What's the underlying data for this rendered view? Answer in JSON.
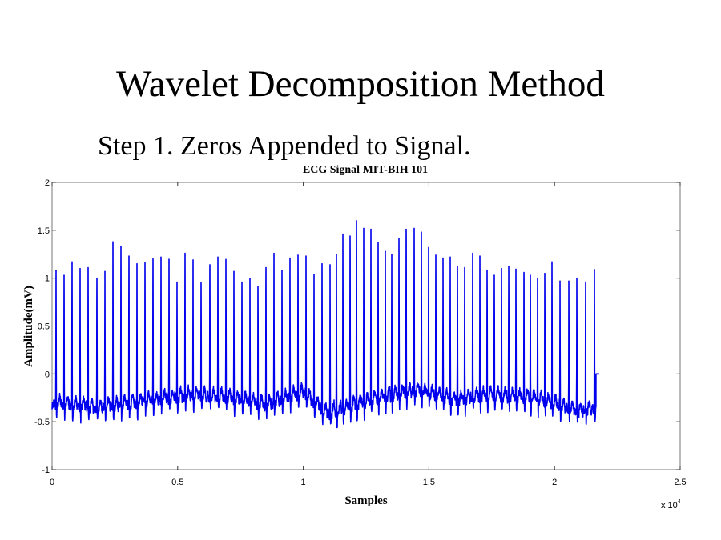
{
  "slide": {
    "title": "Wavelet Decomposition Method",
    "subtitle": "Step 1. Zeros Appended to Signal."
  },
  "chart_data": {
    "type": "line",
    "title": "ECG Signal MIT-BIH 101",
    "xlabel": "Samples",
    "ylabel": "Amplitude(mV)",
    "x_multiplier_label": "x 10",
    "x_multiplier_exp": "4",
    "xlim": [
      0,
      25000
    ],
    "ylim": [
      -1,
      2
    ],
    "xticks": [
      0,
      5000,
      10000,
      15000,
      20000,
      25000
    ],
    "xtick_labels": [
      "0",
      "0.5",
      "1",
      "1.5",
      "2",
      "2.5"
    ],
    "yticks": [
      -1,
      -0.5,
      0,
      0.5,
      1,
      1.5,
      2
    ],
    "ytick_labels": [
      "-1",
      "-0.5",
      "0",
      "0.5",
      "1",
      "1.5",
      "2"
    ],
    "grid": false,
    "series_color": "#0000ee",
    "signal_end_sample": 21650,
    "zero_padding_until_sample": 21780,
    "r_peaks": [
      [
        159,
        1.08
      ],
      [
        478,
        1.03
      ],
      [
        797,
        1.17
      ],
      [
        1116,
        1.1
      ],
      [
        1435,
        1.11
      ],
      [
        1786,
        1.0
      ],
      [
        2105,
        1.07
      ],
      [
        2424,
        1.38
      ],
      [
        2742,
        1.33
      ],
      [
        3061,
        1.23
      ],
      [
        3380,
        1.15
      ],
      [
        3699,
        1.16
      ],
      [
        4018,
        1.2
      ],
      [
        4337,
        1.22
      ],
      [
        4656,
        1.16
      ],
      [
        4975,
        0.96
      ],
      [
        5293,
        1.26
      ],
      [
        5612,
        1.19
      ],
      [
        5931,
        0.95
      ],
      [
        6282,
        1.14
      ],
      [
        6601,
        1.22
      ],
      [
        6920,
        1.19
      ],
      [
        7239,
        1.07
      ],
      [
        7558,
        0.96
      ],
      [
        7877,
        1.0
      ],
      [
        8196,
        0.91
      ],
      [
        8514,
        1.11
      ],
      [
        8833,
        1.26
      ],
      [
        9152,
        1.08
      ],
      [
        9471,
        1.21
      ],
      [
        9790,
        1.24
      ],
      [
        10109,
        1.23
      ],
      [
        10428,
        1.04
      ],
      [
        10747,
        1.15
      ],
      [
        11066,
        1.14
      ],
      [
        11321,
        1.25
      ],
      [
        11576,
        1.46
      ],
      [
        11863,
        1.44
      ],
      [
        12118,
        1.6
      ],
      [
        12405,
        1.52
      ],
      [
        12692,
        1.51
      ],
      [
        12979,
        1.37
      ],
      [
        13266,
        1.28
      ],
      [
        13521,
        1.25
      ],
      [
        13808,
        1.41
      ],
      [
        14095,
        1.51
      ],
      [
        14414,
        1.52
      ],
      [
        14701,
        1.48
      ],
      [
        14988,
        1.32
      ],
      [
        15275,
        1.24
      ],
      [
        15562,
        1.21
      ],
      [
        15849,
        1.22
      ],
      [
        16136,
        1.12
      ],
      [
        16423,
        1.11
      ],
      [
        16742,
        1.26
      ],
      [
        17029,
        1.23
      ],
      [
        17316,
        1.08
      ],
      [
        17603,
        1.03
      ],
      [
        17890,
        1.1
      ],
      [
        18177,
        1.12
      ],
      [
        18464,
        1.06
      ],
      [
        18783,
        1.06
      ],
      [
        19038,
        1.03
      ],
      [
        19325,
        1.0
      ],
      [
        19612,
        1.05
      ],
      [
        19899,
        1.17
      ],
      [
        20218,
        0.97
      ],
      [
        20569,
        0.97
      ],
      [
        20888,
        1.0
      ],
      [
        21237,
        0.96
      ],
      [
        21589,
        1.09
      ]
    ],
    "baseline": [
      [
        0,
        -0.33
      ],
      [
        2000,
        -0.38
      ],
      [
        4000,
        -0.3
      ],
      [
        5500,
        -0.25
      ],
      [
        7000,
        -0.27
      ],
      [
        8500,
        -0.35
      ],
      [
        10000,
        -0.22
      ],
      [
        11000,
        -0.45
      ],
      [
        12500,
        -0.32
      ],
      [
        14500,
        -0.2
      ],
      [
        16000,
        -0.3
      ],
      [
        17500,
        -0.25
      ],
      [
        19500,
        -0.3
      ],
      [
        21000,
        -0.42
      ],
      [
        21650,
        -0.38
      ]
    ]
  }
}
